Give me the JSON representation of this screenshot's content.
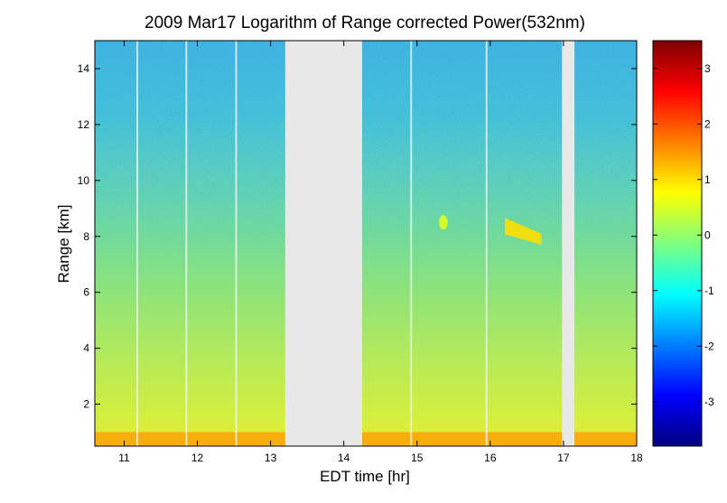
{
  "chart_data": {
    "type": "heatmap",
    "title": "2009 Mar17  Logarithm of Range corrected Power(532nm)",
    "xlabel": "EDT time [hr]",
    "ylabel": "Range [km]",
    "xlim": [
      10.6,
      18.0
    ],
    "ylim": [
      0.5,
      15.0
    ],
    "x_ticks": [
      11,
      12,
      13,
      14,
      15,
      16,
      17,
      18
    ],
    "y_ticks": [
      2,
      4,
      6,
      8,
      10,
      12,
      14
    ],
    "colorbar": {
      "clim": [
        -3.8,
        3.5
      ],
      "ticks": [
        -3,
        -2,
        -1,
        0,
        1,
        2,
        3
      ],
      "colormap": "jet",
      "stops": [
        "#00007f",
        "#0000ff",
        "#007fff",
        "#00ffff",
        "#7fff7f",
        "#ffff00",
        "#ff7f00",
        "#ff0000",
        "#7f0000"
      ]
    },
    "data_gaps": [
      {
        "x_start": 13.2,
        "x_end": 14.25
      },
      {
        "x_start": 16.98,
        "x_end": 17.15
      }
    ],
    "gap_color": "#e8e8e8",
    "thin_gaps_x": [
      11.18,
      11.85,
      12.53,
      14.92,
      15.95
    ],
    "aerosol_layer": {
      "top_km": 1.0,
      "value": 1.5
    },
    "cloud_features": [
      {
        "x_start": 15.3,
        "x_end": 15.42,
        "y": 8.5,
        "value": 0.6
      },
      {
        "x_start": 16.2,
        "x_end": 16.7,
        "y_start": 8.4,
        "y_end": 7.9,
        "value": 1.0
      }
    ]
  }
}
